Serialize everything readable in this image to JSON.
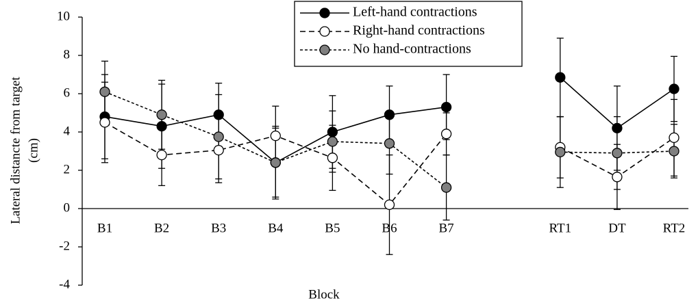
{
  "chart_data": {
    "type": "line",
    "categories": [
      "B1",
      "B2",
      "B3",
      "B4",
      "B5",
      "B6",
      "B7",
      null,
      "RT1",
      "DT",
      "RT2"
    ],
    "series": [
      {
        "name": "Left-hand contractions",
        "color": "#000000",
        "dash": "solid",
        "values": [
          4.8,
          4.3,
          4.9,
          2.4,
          4.0,
          4.9,
          5.3,
          null,
          6.85,
          4.2,
          6.25
        ],
        "errors": [
          2.2,
          2.2,
          1.65,
          1.9,
          1.9,
          1.5,
          1.7,
          null,
          2.05,
          2.2,
          1.7
        ]
      },
      {
        "name": "Right-hand contractions",
        "color": "#ffffff",
        "dash": "dashed",
        "values": [
          4.5,
          2.8,
          3.05,
          3.8,
          2.65,
          0.2,
          3.9,
          null,
          3.2,
          1.65,
          3.7
        ],
        "errors": [
          2.1,
          1.6,
          1.7,
          1.55,
          1.7,
          2.6,
          1.1,
          null,
          1.6,
          1.7,
          2.0
        ]
      },
      {
        "name": "No hand-contractions",
        "color": "#808080",
        "dash": "dotted",
        "values": [
          6.1,
          4.9,
          3.75,
          2.4,
          3.5,
          3.4,
          1.1,
          null,
          2.95,
          2.9,
          3.0
        ],
        "errors": [
          1.6,
          1.8,
          2.2,
          1.8,
          1.6,
          1.6,
          1.7,
          null,
          1.85,
          1.9,
          1.4
        ]
      }
    ],
    "x_label": "Block",
    "y_label": [
      "Lateral distancte from target",
      "(cm)"
    ],
    "ylim": [
      -4,
      10
    ],
    "yticks": [
      -4,
      -2,
      0,
      2,
      4,
      6,
      8,
      10
    ],
    "legend": "top"
  }
}
